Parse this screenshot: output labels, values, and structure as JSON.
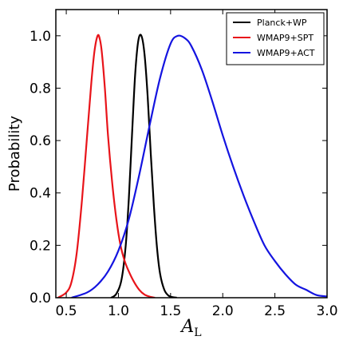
{
  "chart_data": {
    "type": "line",
    "title": "",
    "ylabel": "Probability",
    "xlabel": "A",
    "xlabel_subscript": "L",
    "xlim": [
      0.4,
      3.0
    ],
    "ylim": [
      0.0,
      1.1
    ],
    "xticks": [
      0.5,
      1.0,
      1.5,
      2.0,
      2.5,
      3.0
    ],
    "xtick_labels": [
      "0.5",
      "1.0",
      "1.5",
      "2.0",
      "2.5",
      "3.0"
    ],
    "yticks": [
      0.0,
      0.2,
      0.4,
      0.6,
      0.8,
      1.0
    ],
    "ytick_labels": [
      "0.0",
      "0.2",
      "0.4",
      "0.6",
      "0.8",
      "1.0"
    ],
    "grid": false,
    "legend_position": "top-right",
    "series": [
      {
        "name": "Planck+WP",
        "color": "#000000",
        "x": [
          0.93,
          0.98,
          1.03,
          1.07,
          1.1,
          1.13,
          1.16,
          1.19,
          1.22,
          1.25,
          1.28,
          1.31,
          1.34,
          1.37,
          1.4,
          1.44,
          1.48,
          1.52,
          1.56
        ],
        "y": [
          0.0,
          0.015,
          0.07,
          0.2,
          0.38,
          0.62,
          0.85,
          0.98,
          1.0,
          0.93,
          0.77,
          0.55,
          0.35,
          0.19,
          0.09,
          0.03,
          0.008,
          0.002,
          0.0
        ]
      },
      {
        "name": "WMAP9+SPT",
        "color": "#e8141a",
        "x": [
          0.42,
          0.5,
          0.55,
          0.6,
          0.65,
          0.7,
          0.74,
          0.77,
          0.8,
          0.82,
          0.84,
          0.87,
          0.9,
          0.94,
          0.98,
          1.02,
          1.06,
          1.1,
          1.15,
          1.2,
          1.25,
          1.3,
          1.35
        ],
        "y": [
          0.0,
          0.02,
          0.06,
          0.17,
          0.37,
          0.62,
          0.82,
          0.94,
          1.0,
          0.99,
          0.94,
          0.8,
          0.62,
          0.44,
          0.3,
          0.2,
          0.14,
          0.1,
          0.06,
          0.03,
          0.012,
          0.004,
          0.0
        ]
      },
      {
        "name": "WMAP9+ACT",
        "color": "#1414e0",
        "x": [
          0.55,
          0.7,
          0.8,
          0.9,
          1.0,
          1.1,
          1.2,
          1.3,
          1.4,
          1.5,
          1.57,
          1.64,
          1.7,
          1.8,
          1.9,
          2.0,
          2.1,
          2.2,
          2.3,
          2.4,
          2.5,
          2.6,
          2.7,
          2.8,
          2.9,
          3.0
        ],
        "y": [
          0.0,
          0.02,
          0.05,
          0.1,
          0.18,
          0.3,
          0.47,
          0.66,
          0.84,
          0.97,
          1.0,
          0.99,
          0.96,
          0.87,
          0.75,
          0.62,
          0.5,
          0.39,
          0.29,
          0.2,
          0.14,
          0.09,
          0.05,
          0.03,
          0.01,
          0.005
        ]
      }
    ]
  }
}
